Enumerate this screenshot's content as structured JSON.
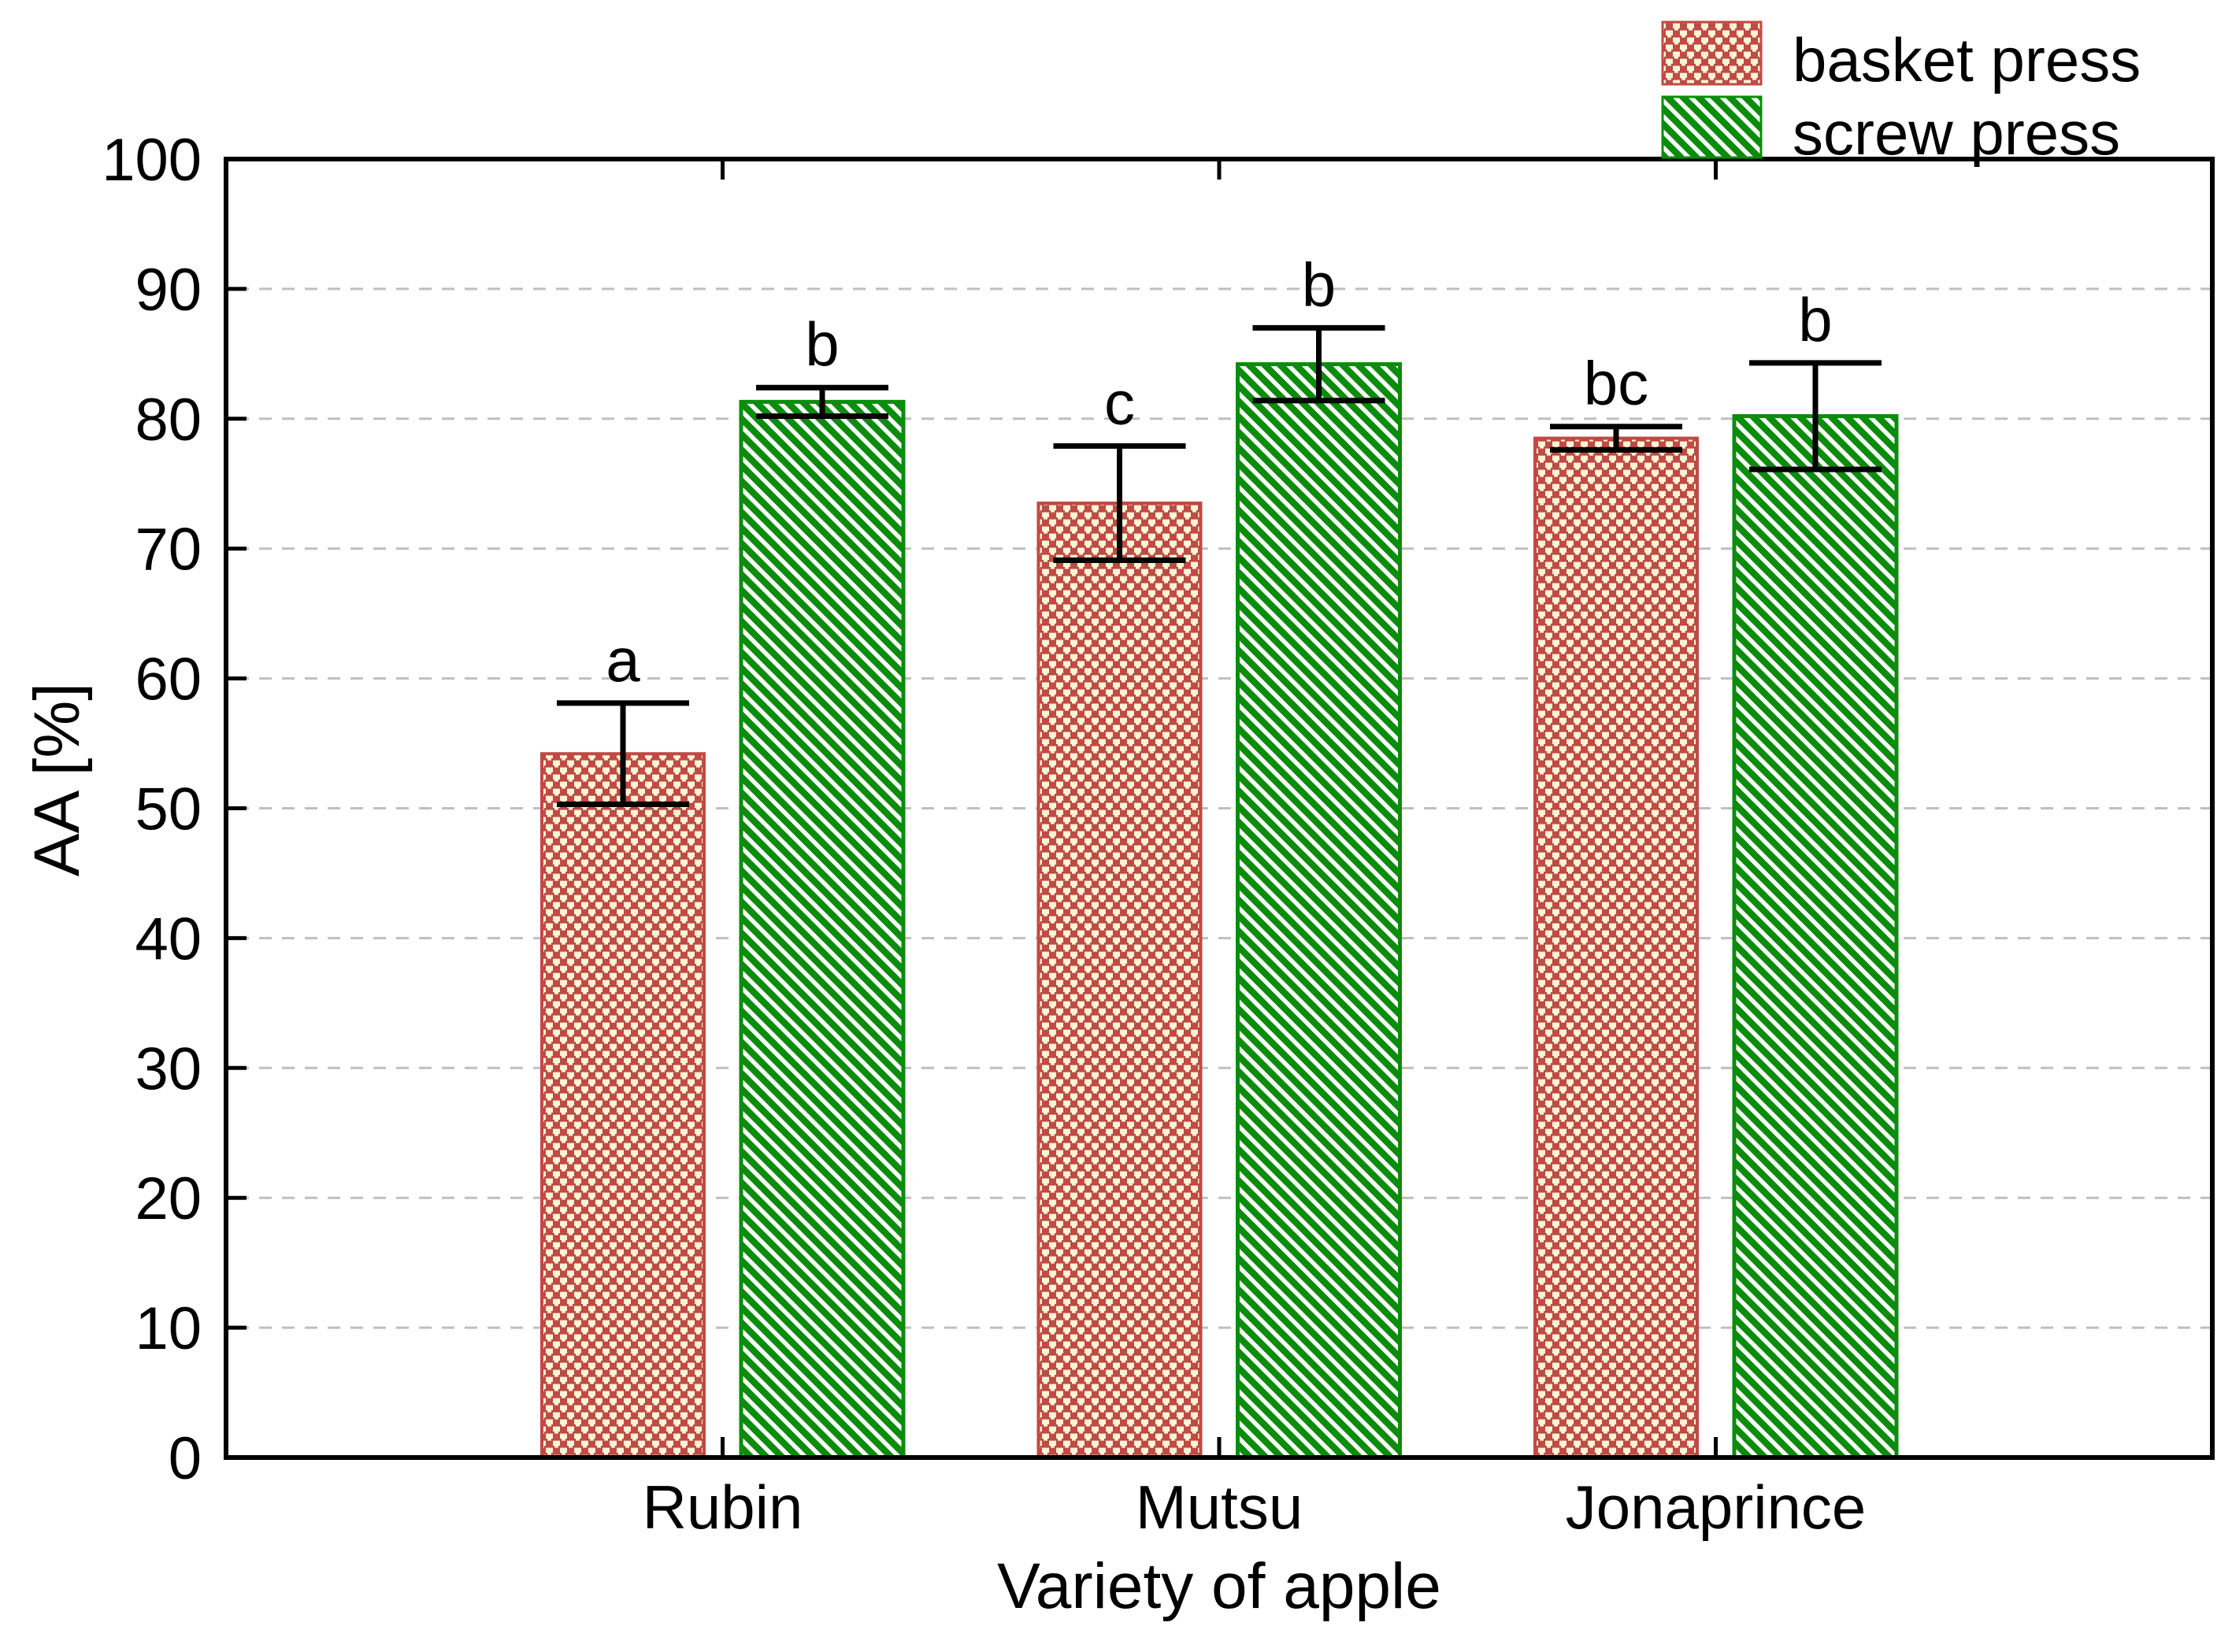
{
  "chart_data": {
    "type": "bar",
    "title": "",
    "xlabel": "Variety of apple",
    "ylabel": "AA [%]",
    "categories": [
      "Rubin",
      "Mutsu",
      "Jonaprince"
    ],
    "series": [
      {
        "name": "basket press",
        "values": [
          54.2,
          73.5,
          78.5
        ],
        "errors": [
          3.9,
          4.4,
          0.9
        ],
        "sig_letters": [
          "a",
          "c",
          "bc"
        ],
        "pattern": "basket-weave",
        "color": "#c04a44"
      },
      {
        "name": "screw press",
        "values": [
          81.3,
          84.2,
          80.2
        ],
        "errors": [
          1.1,
          2.8,
          4.1
        ],
        "sig_letters": [
          "b",
          "b",
          "b"
        ],
        "pattern": "diagonal-stripes",
        "color": "#0c8c0c"
      }
    ],
    "ylim": [
      0,
      100
    ],
    "yticks": [
      0,
      10,
      20,
      30,
      40,
      50,
      60,
      70,
      80,
      90,
      100
    ],
    "grid": "horizontal-dashed-at-major-ticks",
    "legend_position": "top-right",
    "error_bars": "plus-minus-with-caps"
  },
  "colors": {
    "basket_red": "#c04a44",
    "basket_cream": "#f9f5d6",
    "screw_green": "#0c8c0c",
    "screw_white": "#ffffff",
    "gridline_gray": "#bfbfbf",
    "axis_black": "#000000",
    "background": "#ffffff"
  }
}
